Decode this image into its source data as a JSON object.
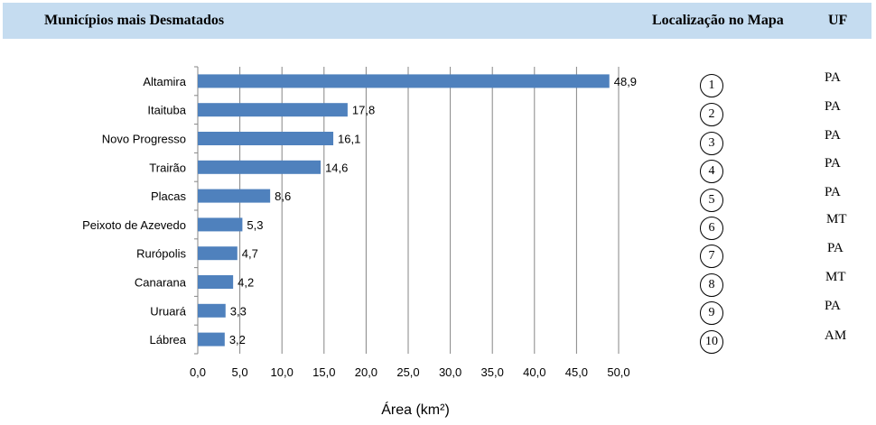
{
  "header": {
    "title": "Municípios mais Desmatados",
    "location_label": "Localização no Mapa",
    "uf_label": "UF"
  },
  "chart_data": {
    "type": "bar",
    "orientation": "horizontal",
    "categories": [
      "Altamira",
      "Itaituba",
      "Novo Progresso",
      "Trairão",
      "Placas",
      "Peixoto de Azevedo",
      "Rurópolis",
      "Canarana",
      "Uruará",
      "Lábrea"
    ],
    "values": [
      48.9,
      17.8,
      16.1,
      14.6,
      8.6,
      5.3,
      4.7,
      4.2,
      3.3,
      3.2
    ],
    "value_labels": [
      "48,9",
      "17,8",
      "16,1",
      "14,6",
      "8,6",
      "5,3",
      "4,7",
      "4,2",
      "3,3",
      "3,2"
    ],
    "xlabel": "Área (km²)",
    "xlim": [
      0,
      50
    ],
    "x_ticks": [
      "0,0",
      "5,0",
      "10,0",
      "15,0",
      "20,0",
      "25,0",
      "30,0",
      "35,0",
      "40,0",
      "45,0",
      "50,0"
    ],
    "grid": "vertical",
    "bar_color": "#4f81bd"
  },
  "table": {
    "locations": [
      "1",
      "2",
      "3",
      "4",
      "5",
      "6",
      "7",
      "8",
      "9",
      "10"
    ],
    "uf": [
      "PA",
      "PA",
      "PA",
      "PA",
      "PA",
      "MT",
      "PA",
      "MT",
      "PA",
      "AM"
    ]
  }
}
